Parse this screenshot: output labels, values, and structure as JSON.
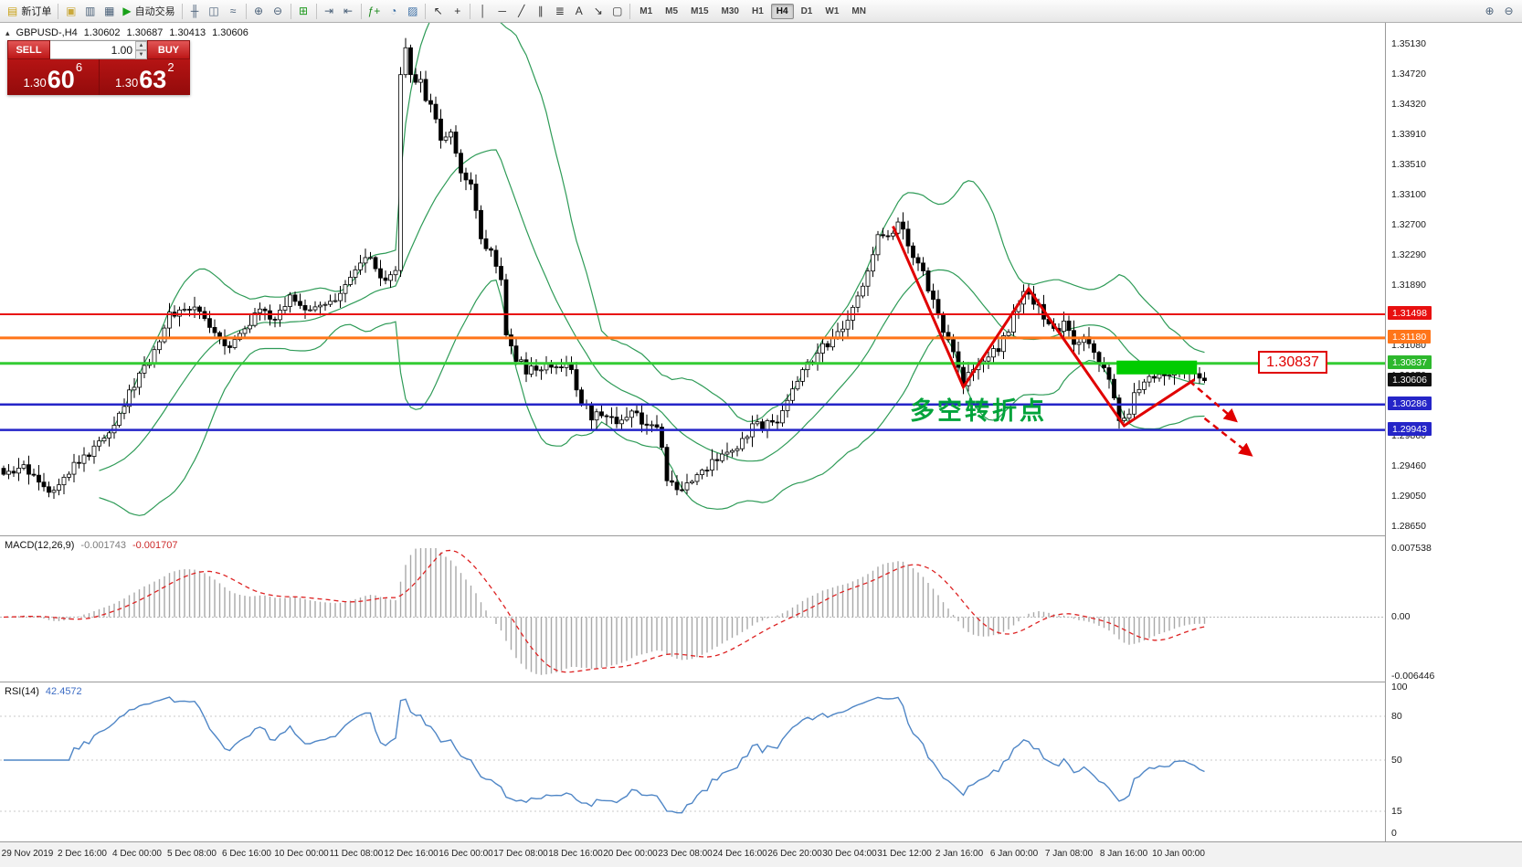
{
  "toolbar": {
    "groups": [
      {
        "items": [
          {
            "name": "new-order-button",
            "glyph": "▤",
            "color": "#c9a115",
            "label": "新订单"
          }
        ]
      },
      {
        "items": [
          {
            "name": "charts-icon",
            "glyph": "▣",
            "color": "#caa93c"
          },
          {
            "name": "profiles-icon",
            "glyph": "▥",
            "color": "#4a6078"
          },
          {
            "name": "terminal-icon",
            "glyph": "▦",
            "color": "#4a6078"
          },
          {
            "name": "autotrading-button",
            "glyph": "▶",
            "color": "#18a018",
            "label": "自动交易"
          }
        ]
      },
      {
        "items": [
          {
            "name": "bar-chart-icon",
            "glyph": "╫",
            "color": "#4a6078"
          },
          {
            "name": "candlestick-chart-icon",
            "glyph": "◫",
            "color": "#4a6078"
          },
          {
            "name": "line-chart-icon",
            "glyph": "≈",
            "color": "#4a6078"
          }
        ]
      },
      {
        "items": [
          {
            "name": "zoom-in-icon",
            "glyph": "⊕",
            "color": "#4a6078"
          },
          {
            "name": "zoom-out-icon",
            "glyph": "⊖",
            "color": "#4a6078"
          }
        ]
      },
      {
        "items": [
          {
            "name": "tile-windows-icon",
            "glyph": "⊞",
            "color": "#1f9a1f"
          }
        ]
      },
      {
        "items": [
          {
            "name": "auto-scroll-icon",
            "glyph": "⇥",
            "color": "#4a6078"
          },
          {
            "name": "chart-shift-icon",
            "glyph": "⇤",
            "color": "#4a6078"
          }
        ]
      },
      {
        "items": [
          {
            "name": "indicators-icon",
            "glyph": "ƒ+",
            "color": "#1f8a1f"
          },
          {
            "name": "periods-icon",
            "glyph": "◔",
            "color": "#3a6ea5"
          },
          {
            "name": "templates-icon",
            "glyph": "▨",
            "color": "#3a6ea5"
          }
        ]
      },
      {
        "items": [
          {
            "name": "cursor-icon",
            "glyph": "↖",
            "color": "#333"
          },
          {
            "name": "crosshair-icon",
            "glyph": "+",
            "color": "#333"
          }
        ]
      },
      {
        "items": [
          {
            "name": "vertical-line-icon",
            "glyph": "│",
            "color": "#333"
          },
          {
            "name": "horizontal-line-icon",
            "glyph": "─",
            "color": "#333"
          },
          {
            "name": "trendline-icon",
            "glyph": "╱",
            "color": "#333"
          },
          {
            "name": "channel-icon",
            "glyph": "∥",
            "color": "#333"
          },
          {
            "name": "fibonacci-icon",
            "glyph": "≣",
            "color": "#333"
          },
          {
            "name": "text-icon",
            "glyph": "A",
            "color": "#333"
          },
          {
            "name": "arrows-icon",
            "glyph": "↘",
            "color": "#333"
          },
          {
            "name": "shapes-icon",
            "glyph": "▢",
            "color": "#333"
          }
        ]
      },
      {
        "type": "timeframes"
      }
    ],
    "timeframes": [
      {
        "label": "M1"
      },
      {
        "label": "M5"
      },
      {
        "label": "M15"
      },
      {
        "label": "M30"
      },
      {
        "label": "H1"
      },
      {
        "label": "H4",
        "active": true
      },
      {
        "label": "D1"
      },
      {
        "label": "W1"
      },
      {
        "label": "MN"
      }
    ],
    "right_items": [
      {
        "name": "zoom-in-icon",
        "glyph": "⊕",
        "color": "#4a6078"
      },
      {
        "name": "zoom-out-icon",
        "glyph": "⊖",
        "color": "#4a6078"
      }
    ]
  },
  "chart_header": {
    "marker_glyph": "▴",
    "symbol_period": "GBPUSD-,H4",
    "open": "1.30602",
    "high": "1.30687",
    "low": "1.30413",
    "close": "1.30606"
  },
  "trade_panel": {
    "sell_label": "SELL",
    "buy_label": "BUY",
    "volume": "1.00",
    "spin_up": "▲",
    "spin_down": "▼",
    "sell": {
      "prefix": "1.30",
      "pips": "60",
      "pipette": "6"
    },
    "buy": {
      "prefix": "1.30",
      "pips": "63",
      "pipette": "2"
    }
  },
  "price_axis": {
    "labels": [
      "1.35130",
      "1.34720",
      "1.34320",
      "1.33910",
      "1.33510",
      "1.33100",
      "1.32700",
      "1.32290",
      "1.31890",
      "1.31480",
      "1.31080",
      "1.30670",
      "1.30260",
      "1.29860",
      "1.29460",
      "1.29050",
      "1.28650"
    ],
    "badges": [
      {
        "text": "1.31498",
        "color": "#e81010"
      },
      {
        "text": "1.31180",
        "color": "#ff7519"
      },
      {
        "text": "1.30837",
        "color": "#2db82d"
      },
      {
        "text": "1.30606",
        "color": "#111111"
      },
      {
        "text": "1.30286",
        "color": "#2525c8"
      },
      {
        "text": "1.29943",
        "color": "#2525c8"
      }
    ]
  },
  "macd": {
    "name": "MACD(12,26,9)",
    "main_value": "-0.001743",
    "signal_value": "-0.001707",
    "axis_labels": [
      "0.007538",
      "0.00",
      "-0.006446"
    ],
    "axis_values": [
      0.007538,
      0,
      -0.006446
    ]
  },
  "rsi": {
    "name": "RSI(14)",
    "value": "42.4572",
    "axis_labels": [
      "100",
      "80",
      "50",
      "15",
      "0"
    ],
    "axis_values": [
      100,
      80,
      50,
      15,
      0
    ],
    "levels": [
      80,
      50,
      15
    ]
  },
  "time_axis": {
    "labels": [
      "29 Nov 2019",
      "2 Dec 16:00",
      "4 Dec 00:00",
      "5 Dec 08:00",
      "6 Dec 16:00",
      "10 Dec 00:00",
      "11 Dec 08:00",
      "12 Dec 16:00",
      "16 Dec 00:00",
      "17 Dec 08:00",
      "18 Dec 16:00",
      "20 Dec 00:00",
      "23 Dec 08:00",
      "24 Dec 16:00",
      "26 Dec 20:00",
      "30 Dec 04:00",
      "31 Dec 12:00",
      "2 Jan 16:00",
      "6 Jan 00:00",
      "7 Jan 08:00",
      "8 Jan 16:00",
      "10 Jan 00:00"
    ]
  },
  "chart_data": {
    "type": "candlestick",
    "symbol": "GBPUSD-",
    "timeframe": "H4",
    "ohlc_display": {
      "open": 1.30602,
      "high": 1.30687,
      "low": 1.30413,
      "close": 1.30606
    },
    "price_top": 1.3513,
    "price_bottom": 1.2865,
    "macd_top": 0.007538,
    "macd_bottom": -0.006446,
    "candle_count": 240,
    "close_anchors": [
      [
        0,
        1.2928
      ],
      [
        3,
        1.2942
      ],
      [
        6,
        1.2938
      ],
      [
        9,
        1.2912
      ],
      [
        12,
        1.2936
      ],
      [
        15,
        1.2952
      ],
      [
        18,
        1.2968
      ],
      [
        21,
        1.2996
      ],
      [
        24,
        1.303
      ],
      [
        27,
        1.3068
      ],
      [
        30,
        1.3102
      ],
      [
        33,
        1.3148
      ],
      [
        36,
        1.316
      ],
      [
        39,
        1.3152
      ],
      [
        42,
        1.3128
      ],
      [
        45,
        1.3108
      ],
      [
        48,
        1.3132
      ],
      [
        51,
        1.3152
      ],
      [
        54,
        1.3142
      ],
      [
        57,
        1.3172
      ],
      [
        60,
        1.3156
      ],
      [
        63,
        1.3168
      ],
      [
        66,
        1.3162
      ],
      [
        69,
        1.3196
      ],
      [
        72,
        1.3228
      ],
      [
        74,
        1.321
      ],
      [
        76,
        1.3188
      ],
      [
        78,
        1.3205
      ],
      [
        79,
        1.347
      ],
      [
        80,
        1.3505
      ],
      [
        81,
        1.3475
      ],
      [
        83,
        1.3458
      ],
      [
        85,
        1.3425
      ],
      [
        87,
        1.3388
      ],
      [
        89,
        1.3395
      ],
      [
        91,
        1.3345
      ],
      [
        93,
        1.3318
      ],
      [
        95,
        1.3258
      ],
      [
        97,
        1.3232
      ],
      [
        99,
        1.3195
      ],
      [
        100,
        1.3125
      ],
      [
        102,
        1.3092
      ],
      [
        104,
        1.3076
      ],
      [
        107,
        1.3072
      ],
      [
        110,
        1.3086
      ],
      [
        113,
        1.3072
      ],
      [
        115,
        1.3032
      ],
      [
        117,
        1.3012
      ],
      [
        119,
        1.3018
      ],
      [
        122,
        1.3006
      ],
      [
        125,
        1.3022
      ],
      [
        128,
        1.3002
      ],
      [
        130,
        1.2996
      ],
      [
        132,
        1.2932
      ],
      [
        134,
        1.2908
      ],
      [
        136,
        1.2922
      ],
      [
        139,
        1.2942
      ],
      [
        142,
        1.2952
      ],
      [
        145,
        1.2968
      ],
      [
        148,
        1.2992
      ],
      [
        151,
        1.3002
      ],
      [
        154,
        1.3008
      ],
      [
        157,
        1.3052
      ],
      [
        160,
        1.3082
      ],
      [
        163,
        1.3106
      ],
      [
        165,
        1.3112
      ],
      [
        168,
        1.3136
      ],
      [
        171,
        1.3192
      ],
      [
        174,
        1.3252
      ],
      [
        176,
        1.3258
      ],
      [
        178,
        1.3272
      ],
      [
        180,
        1.3242
      ],
      [
        183,
        1.3202
      ],
      [
        186,
        1.3152
      ],
      [
        187,
        1.3132
      ],
      [
        189,
        1.3092
      ],
      [
        191,
        1.3058
      ],
      [
        193,
        1.3076
      ],
      [
        195,
        1.3092
      ],
      [
        198,
        1.3106
      ],
      [
        200,
        1.3132
      ],
      [
        202,
        1.3166
      ],
      [
        204,
        1.3182
      ],
      [
        206,
        1.3158
      ],
      [
        208,
        1.3142
      ],
      [
        209,
        1.3126
      ],
      [
        211,
        1.3136
      ],
      [
        213,
        1.3106
      ],
      [
        215,
        1.3116
      ],
      [
        217,
        1.3096
      ],
      [
        219,
        1.3076
      ],
      [
        220,
        1.3058
      ],
      [
        222,
        1.3004
      ],
      [
        224,
        1.3022
      ],
      [
        226,
        1.3056
      ],
      [
        228,
        1.3062
      ],
      [
        230,
        1.3066
      ],
      [
        232,
        1.3072
      ],
      [
        234,
        1.3082
      ],
      [
        236,
        1.3076
      ],
      [
        238,
        1.3064
      ],
      [
        239,
        1.30606
      ]
    ],
    "indicators": {
      "bollinger": {
        "period": 20,
        "deviation": 2
      },
      "macd": {
        "fast": 12,
        "slow": 26,
        "signal": 9,
        "value": -0.001743,
        "signal_value": -0.001707
      },
      "rsi": {
        "period": 14,
        "value": 42.4572
      }
    },
    "hlines": [
      {
        "price": 1.31498,
        "color": "#e81010",
        "width": 2
      },
      {
        "price": 1.3118,
        "color": "#ff7519",
        "width": 3
      },
      {
        "price": 1.30837,
        "color": "#33cc33",
        "width": 3
      },
      {
        "price": 1.30286,
        "color": "#2525c8",
        "width": 2.5
      },
      {
        "price": 1.29943,
        "color": "#2525c8",
        "width": 2.5
      }
    ],
    "colors": {
      "bollinger": "#2e9b57",
      "trend": "#e00000",
      "macd_histogram": "#a8a8a8",
      "macd_signal": "#dd2222",
      "rsi": "#4f86c6",
      "support_zone": "#00cc00",
      "turning_point_text": "#00a33a"
    },
    "annotations": {
      "trend_path": [
        [
          177,
          1.3268
        ],
        [
          191,
          1.3052
        ],
        [
          204,
          1.3184
        ],
        [
          223,
          1.3
        ],
        [
          237,
          1.3062
        ]
      ],
      "dashed_arrows": [
        [
          [
            236,
            1.306
          ],
          [
            245,
            1.3008
          ]
        ],
        [
          [
            239,
            1.301
          ],
          [
            248,
            1.2962
          ]
        ]
      ],
      "support_zone": {
        "i1": 221.5,
        "i2": 237.5,
        "p1": 1.30875,
        "p2": 1.3069,
        "color": "#00cc00"
      },
      "turning_point": {
        "text": "多空转折点",
        "color": "#00a33a"
      },
      "price_tag": {
        "text": "1.30837"
      }
    }
  }
}
